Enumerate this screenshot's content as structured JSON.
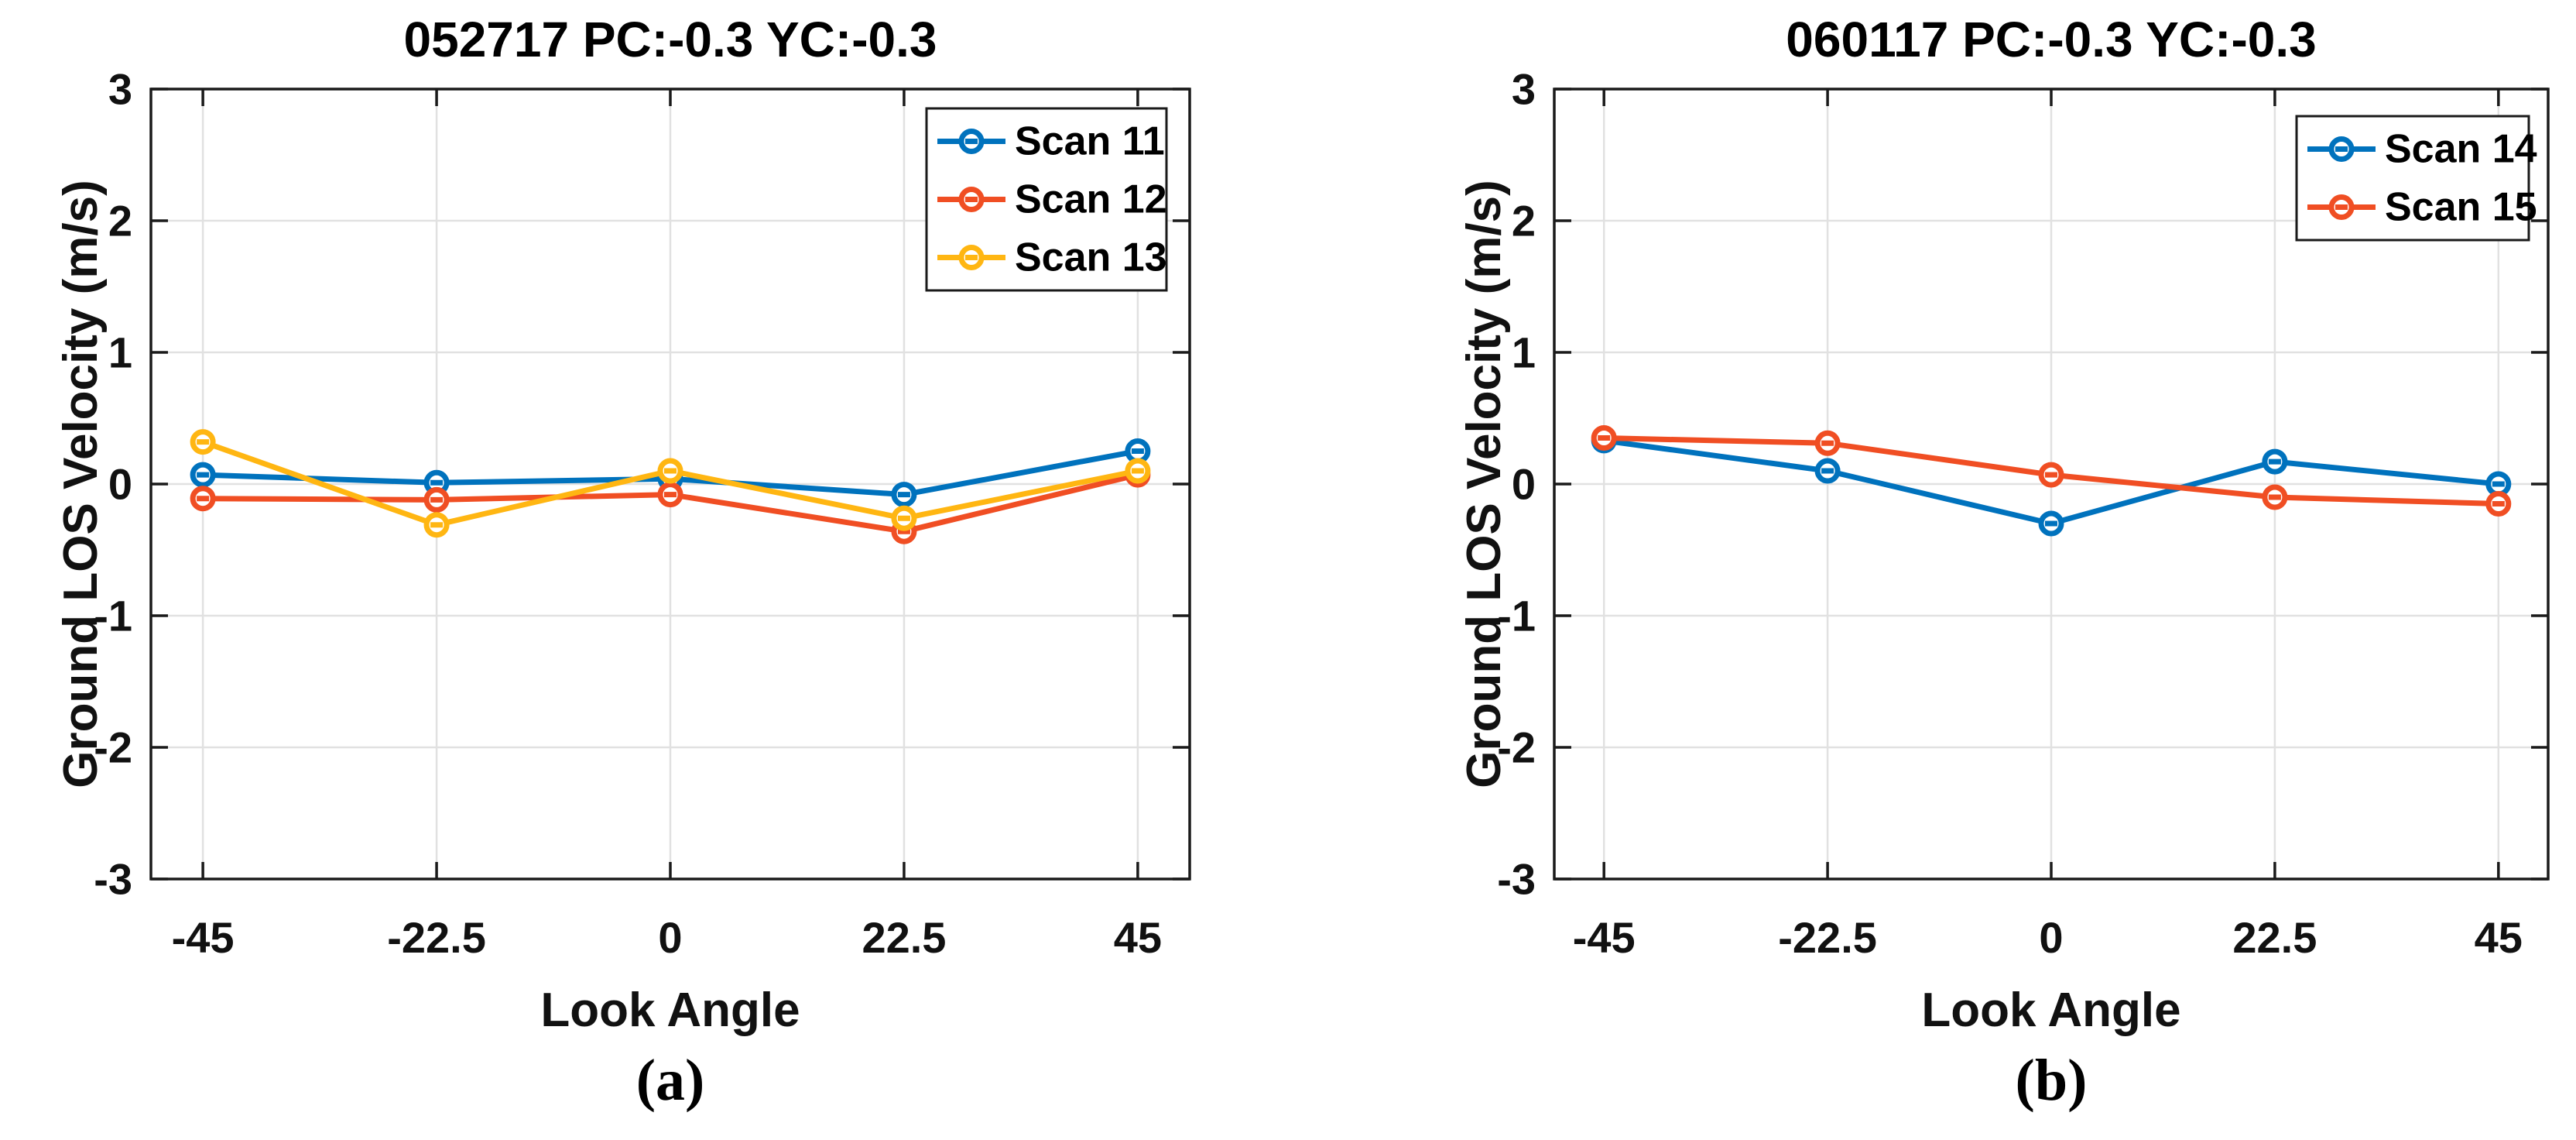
{
  "colors": {
    "background": "#ffffff",
    "axis": "#1a1a1a",
    "grid": "#e1e1e1",
    "text": "#111111",
    "series_blue": "#0072BD",
    "series_orange": "#F04E23",
    "series_yellow": "#FFB612"
  },
  "captions": {
    "a": "(a)",
    "b": "(b)"
  },
  "chart_data": [
    {
      "type": "line",
      "title": "052717  PC:-0.3 YC:-0.3",
      "xlabel": "Look Angle",
      "ylabel": "Ground LOS Velocity (m/s)",
      "x": [
        -45,
        -22.5,
        0,
        22.5,
        45
      ],
      "xtick_labels": [
        "-45",
        "-22.5",
        "0",
        "22.5",
        "45"
      ],
      "yticks": [
        -3,
        -2,
        -1,
        0,
        1,
        2,
        3
      ],
      "ytick_labels": [
        "-3",
        "-2",
        "-1",
        "0",
        "1",
        "2",
        "3"
      ],
      "xlim": [
        -50,
        50
      ],
      "ylim": [
        -3,
        3
      ],
      "grid": true,
      "legend_position": "top-right",
      "series": [
        {
          "name": "Scan 11",
          "color": "#0072BD",
          "values": [
            0.07,
            0.01,
            0.04,
            -0.08,
            0.25
          ]
        },
        {
          "name": "Scan 12",
          "color": "#F04E23",
          "values": [
            -0.11,
            -0.12,
            -0.08,
            -0.36,
            0.07
          ]
        },
        {
          "name": "Scan 13",
          "color": "#FFB612",
          "values": [
            0.32,
            -0.31,
            0.1,
            -0.26,
            0.1
          ]
        }
      ]
    },
    {
      "type": "line",
      "title": "060117  PC:-0.3 YC:-0.3",
      "xlabel": "Look Angle",
      "ylabel": "Ground LOS Velocity (m/s)",
      "x": [
        -45,
        -22.5,
        0,
        22.5,
        45
      ],
      "xtick_labels": [
        "-45",
        "-22.5",
        "0",
        "22.5",
        "45"
      ],
      "yticks": [
        -3,
        -2,
        -1,
        0,
        1,
        2,
        3
      ],
      "ytick_labels": [
        "-3",
        "-2",
        "-1",
        "0",
        "1",
        "2",
        "3"
      ],
      "xlim": [
        -50,
        50
      ],
      "ylim": [
        -3,
        3
      ],
      "grid": true,
      "legend_position": "top-right",
      "series": [
        {
          "name": "Scan 14",
          "color": "#0072BD",
          "values": [
            0.33,
            0.1,
            -0.3,
            0.17,
            0.0
          ]
        },
        {
          "name": "Scan 15",
          "color": "#F04E23",
          "values": [
            0.35,
            0.31,
            0.07,
            -0.1,
            -0.15
          ]
        }
      ]
    }
  ]
}
